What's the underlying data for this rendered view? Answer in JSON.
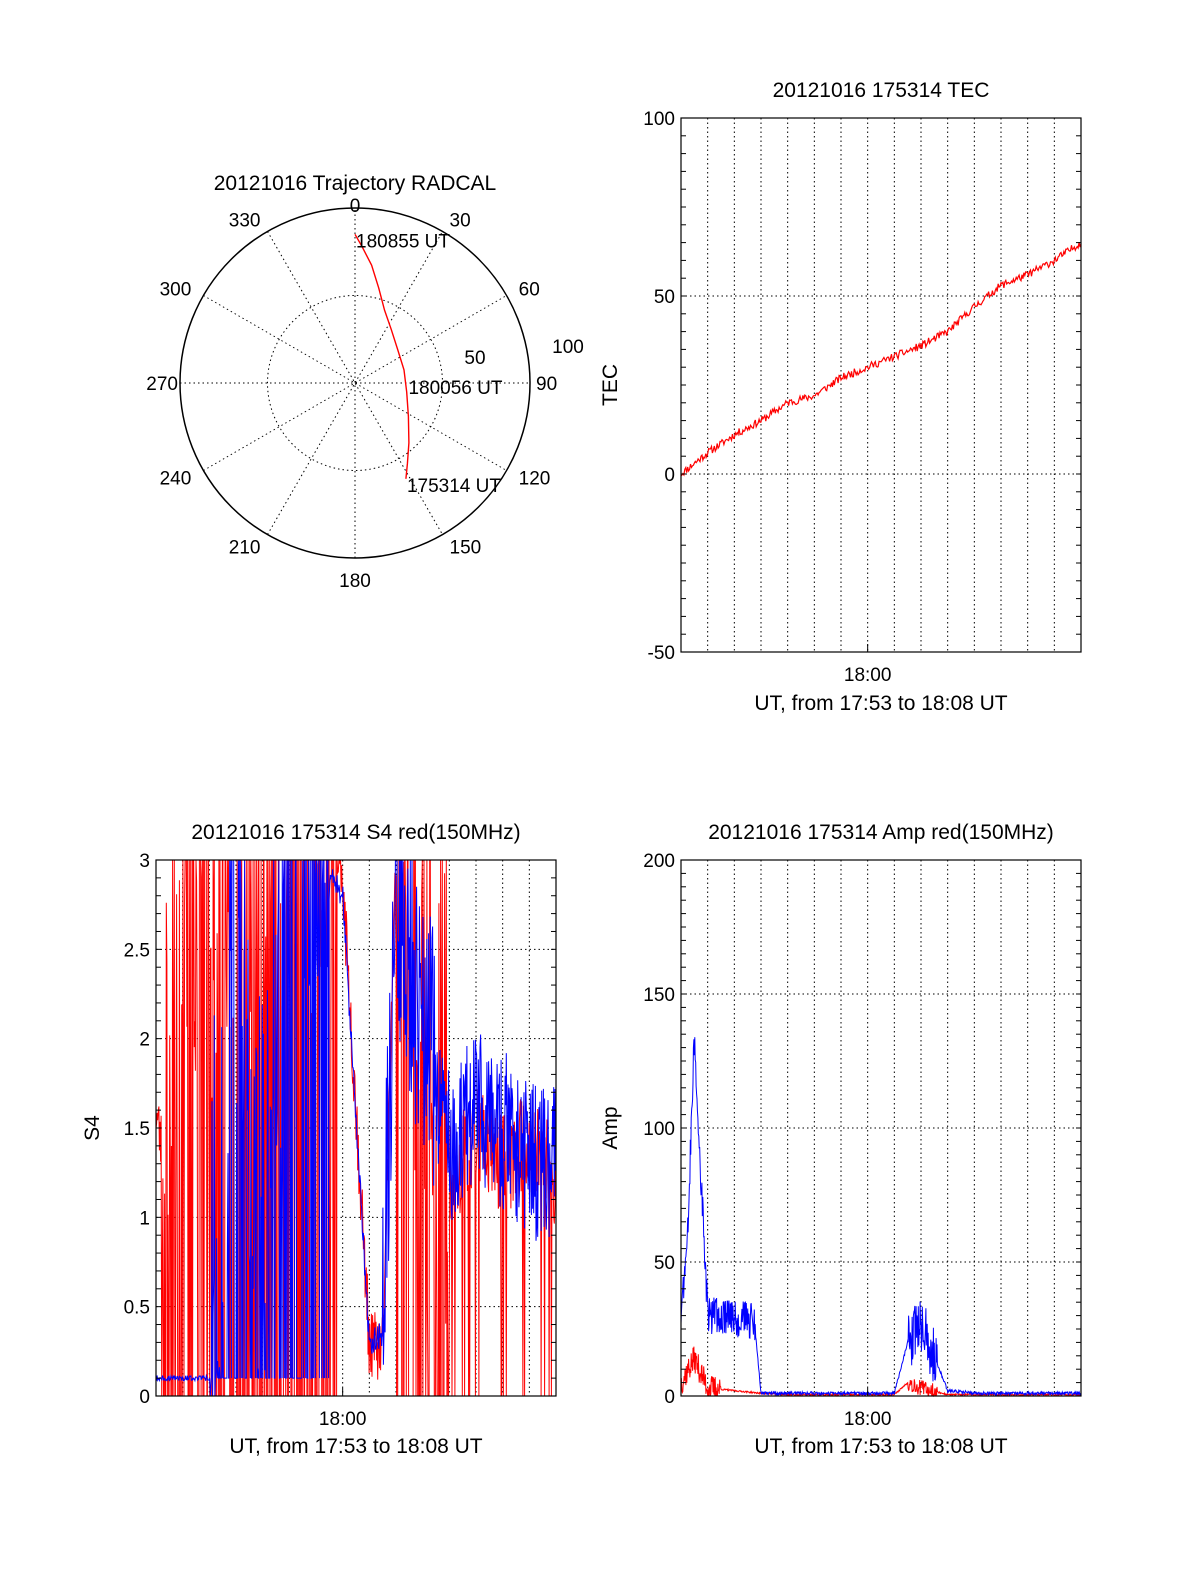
{
  "chart_data": [
    {
      "id": "trajectory",
      "type": "polar",
      "title": "20121016 Trajectory RADCAL",
      "azimuth_labels": [
        "0",
        "30",
        "60",
        "90",
        "120",
        "150",
        "180",
        "210",
        "240",
        "270",
        "300",
        "330"
      ],
      "radial_labels": [
        "50",
        "100"
      ],
      "radial_range": [
        0,
        100
      ],
      "grid": true,
      "colors": {
        "track": "#ff0000",
        "frame": "#000000"
      },
      "track": [
        {
          "az": 0,
          "r": 85
        },
        {
          "az": 3,
          "r": 78
        },
        {
          "az": 8,
          "r": 68
        },
        {
          "az": 14,
          "r": 56
        },
        {
          "az": 22,
          "r": 45
        },
        {
          "az": 34,
          "r": 37
        },
        {
          "az": 52,
          "r": 31
        },
        {
          "az": 75,
          "r": 29
        },
        {
          "az": 100,
          "r": 30
        },
        {
          "az": 122,
          "r": 36
        },
        {
          "az": 138,
          "r": 46
        },
        {
          "az": 147,
          "r": 55
        },
        {
          "az": 152,
          "r": 62
        }
      ],
      "annotations": [
        {
          "text": "180855 UT",
          "az": 0,
          "r": 85
        },
        {
          "text": "180056 UT",
          "az": 88,
          "r": 30
        },
        {
          "text": "175314 UT",
          "az": 152,
          "r": 62
        }
      ]
    },
    {
      "id": "tec",
      "type": "line",
      "title": "20121016 175314 TEC",
      "xlabel": "UT, from 17:53 to 18:08 UT",
      "ylabel": "TEC",
      "xlim": [
        "17:53",
        "18:08"
      ],
      "xticks": [
        "18:00"
      ],
      "ylim": [
        -50,
        100
      ],
      "yticks": [
        "-50",
        "0",
        "50",
        "100"
      ],
      "grid": true,
      "colors": {
        "red": "#ff0000"
      },
      "series": [
        {
          "color": "#ff0000",
          "x": [
            "17:53",
            "17:54",
            "17:55",
            "17:56",
            "17:57",
            "17:58",
            "17:59",
            "18:00",
            "18:01",
            "18:02",
            "18:03",
            "18:04",
            "18:05",
            "18:06",
            "18:07",
            "18:08"
          ],
          "y": [
            0,
            6,
            11,
            15,
            20,
            22,
            27,
            30,
            33,
            36,
            40,
            47,
            53,
            56,
            60,
            65
          ]
        }
      ]
    },
    {
      "id": "s4",
      "type": "line",
      "title": "20121016 175314 S4 red(150MHz)",
      "xlabel": "UT, from 17:53 to 18:08 UT",
      "ylabel": "S4",
      "xlim": [
        "17:53",
        "18:08"
      ],
      "xticks": [
        "18:00"
      ],
      "ylim": [
        0,
        3
      ],
      "yticks": [
        "0",
        "0.5",
        "1",
        "1.5",
        "2",
        "2.5",
        "3"
      ],
      "grid": true,
      "colors": {
        "red": "#ff0000",
        "blue": "#0000ff"
      },
      "series": [
        {
          "color": "#ff0000",
          "x": [
            "17:53",
            "17:53:30",
            "17:54",
            "17:55",
            "17:56",
            "17:57",
            "17:58",
            "17:59",
            "18:00",
            "18:01",
            "18:01:30",
            "18:02",
            "18:03",
            "18:04",
            "18:05",
            "18:06",
            "18:07",
            "18:08"
          ],
          "y": [
            1.6,
            1.1,
            2.8,
            2.4,
            2.9,
            3.0,
            2.6,
            3.0,
            2.9,
            0.3,
            0.25,
            3.0,
            1.4,
            1.2,
            1.5,
            1.3,
            1.4,
            1.2
          ]
        },
        {
          "color": "#0000ff",
          "x": [
            "17:53",
            "17:54",
            "17:55",
            "17:56",
            "17:57",
            "17:58",
            "17:59",
            "18:00",
            "18:01",
            "18:01:30",
            "18:02",
            "18:03",
            "18:04",
            "18:05",
            "18:06",
            "18:07",
            "18:08"
          ],
          "y": [
            0.1,
            0.1,
            0.1,
            2.2,
            0.6,
            2.5,
            3.0,
            2.8,
            0.3,
            0.35,
            2.8,
            2.1,
            1.4,
            1.6,
            1.5,
            1.3,
            1.3
          ]
        }
      ]
    },
    {
      "id": "amp",
      "type": "line",
      "title": "20121016 175314 Amp red(150MHz)",
      "xlabel": "UT, from 17:53 to 18:08 UT",
      "ylabel": "Amp",
      "xlim": [
        "17:53",
        "18:08"
      ],
      "xticks": [
        "18:00"
      ],
      "ylim": [
        0,
        200
      ],
      "yticks": [
        "0",
        "50",
        "100",
        "150",
        "200"
      ],
      "grid": true,
      "colors": {
        "red": "#ff0000",
        "blue": "#0000ff"
      },
      "series": [
        {
          "color": "#ff0000",
          "x": [
            "17:53",
            "17:53:30",
            "17:54",
            "17:55",
            "17:56",
            "17:57",
            "17:58",
            "17:59",
            "18:00",
            "18:01",
            "18:01:30",
            "18:02",
            "18:03",
            "18:08"
          ],
          "y": [
            5,
            14,
            3,
            2,
            1,
            0.5,
            0.5,
            0.5,
            0.5,
            0.5,
            5,
            3,
            0.5,
            0.5
          ]
        },
        {
          "color": "#0000ff",
          "x": [
            "17:53",
            "17:53:15",
            "17:53:30",
            "17:54",
            "17:55",
            "17:55:45",
            "17:56",
            "17:57",
            "17:58",
            "17:59",
            "18:00",
            "18:01",
            "18:01:30",
            "18:02",
            "18:02:30",
            "18:03",
            "18:04",
            "18:05",
            "18:06",
            "18:07",
            "18:08"
          ],
          "y": [
            30,
            60,
            133,
            30,
            29,
            28,
            1,
            1,
            1,
            1,
            1,
            1,
            20,
            26,
            15,
            2,
            1,
            1,
            1,
            1,
            1
          ]
        }
      ]
    }
  ]
}
